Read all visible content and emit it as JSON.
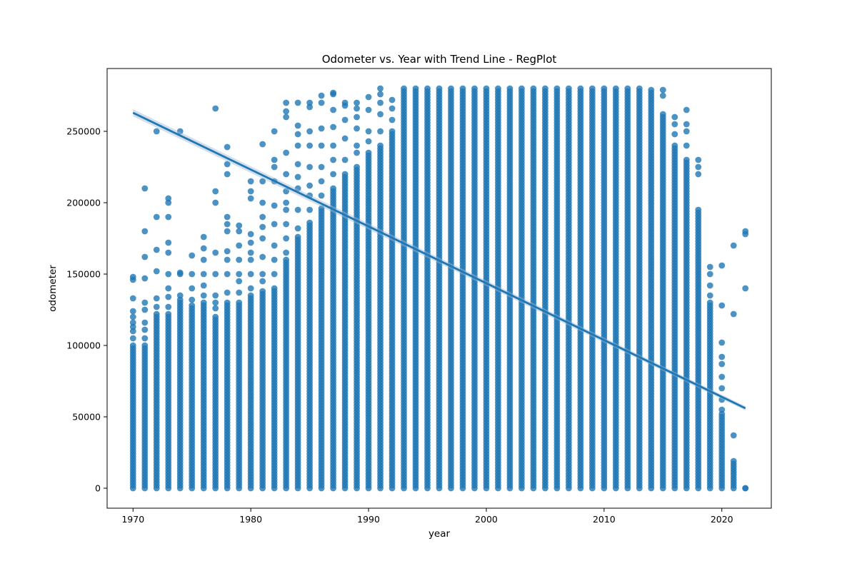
{
  "chart_data": {
    "type": "scatter",
    "title": "Odometer vs. Year with Trend Line - RegPlot",
    "xlabel": "year",
    "ylabel": "odometer",
    "xlim": [
      1967.8,
      2024.2
    ],
    "ylim": [
      -14000,
      294000
    ],
    "xticks": [
      1970,
      1980,
      1990,
      2000,
      2010,
      2020
    ],
    "yticks": [
      0,
      50000,
      100000,
      150000,
      200000,
      250000
    ],
    "grid": false,
    "point_color": "#1f77b4",
    "trend_line": {
      "x": [
        1970,
        2022
      ],
      "y": [
        263000,
        56000
      ],
      "color": "#1f77b4"
    },
    "columns": [
      {
        "year": 1970,
        "min": 0,
        "max": 100000,
        "outliers": [
          105000,
          110000,
          113000,
          116000,
          120000,
          124000,
          133000,
          146000,
          148000
        ]
      },
      {
        "year": 1971,
        "min": 0,
        "max": 100000,
        "outliers": [
          105000,
          111000,
          116000,
          125000,
          130000,
          147000,
          162000,
          180000,
          210000
        ]
      },
      {
        "year": 1972,
        "min": 0,
        "max": 122000,
        "outliers": [
          127000,
          133000,
          152000,
          167000,
          190000,
          250000
        ]
      },
      {
        "year": 1973,
        "min": 0,
        "max": 122000,
        "outliers": [
          127000,
          134000,
          140000,
          150000,
          165000,
          172000,
          190000,
          200000,
          203000
        ]
      },
      {
        "year": 1974,
        "min": 0,
        "max": 132000,
        "outliers": [
          135000,
          150000,
          151000,
          250000
        ]
      },
      {
        "year": 1975,
        "min": 0,
        "max": 128000,
        "outliers": [
          132000,
          140000,
          150000,
          163000
        ]
      },
      {
        "year": 1976,
        "min": 0,
        "max": 130000,
        "outliers": [
          135000,
          142000,
          150000,
          160000,
          168000,
          176000
        ]
      },
      {
        "year": 1977,
        "min": 0,
        "max": 120000,
        "outliers": [
          126000,
          130000,
          135000,
          150000,
          165000,
          200000,
          208000,
          266000
        ]
      },
      {
        "year": 1978,
        "min": 0,
        "max": 130000,
        "outliers": [
          137000,
          150000,
          160000,
          166000,
          180000,
          185000,
          190000,
          220000,
          227000,
          239000
        ]
      },
      {
        "year": 1979,
        "min": 0,
        "max": 130000,
        "outliers": [
          137000,
          145000,
          150000,
          160000,
          170000,
          180000,
          184000
        ]
      },
      {
        "year": 1980,
        "min": 0,
        "max": 135000,
        "outliers": [
          140000,
          150000,
          160000,
          165000,
          172000,
          178000,
          203000,
          208000,
          215000
        ]
      },
      {
        "year": 1981,
        "min": 0,
        "max": 138000,
        "outliers": [
          145000,
          150000,
          162000,
          175000,
          183000,
          190000,
          200000,
          215000,
          241000
        ]
      },
      {
        "year": 1982,
        "min": 0,
        "max": 140000,
        "outliers": [
          150000,
          160000,
          170000,
          185000,
          198000,
          215000,
          225000,
          230000,
          250000
        ]
      },
      {
        "year": 1983,
        "min": 0,
        "max": 160000,
        "outliers": [
          165000,
          175000,
          185000,
          195000,
          200000,
          208000,
          220000,
          235000,
          260000,
          264000,
          270000
        ]
      },
      {
        "year": 1984,
        "min": 0,
        "max": 176000,
        "outliers": [
          182000,
          195000,
          210000,
          218000,
          227000,
          240000,
          248000,
          254000,
          270000
        ]
      },
      {
        "year": 1985,
        "min": 0,
        "max": 186000,
        "outliers": [
          195000,
          205000,
          212000,
          225000,
          240000,
          250000,
          267000,
          270000
        ]
      },
      {
        "year": 1986,
        "min": 0,
        "max": 196000,
        "outliers": [
          205000,
          215000,
          225000,
          240000,
          252000,
          270000,
          275000
        ]
      },
      {
        "year": 1987,
        "min": 0,
        "max": 210000,
        "outliers": [
          220000,
          230000,
          240000,
          253000,
          265000,
          276000,
          277000
        ]
      },
      {
        "year": 1988,
        "min": 0,
        "max": 220000,
        "outliers": [
          230000,
          245000,
          258000,
          268000,
          270000
        ]
      },
      {
        "year": 1989,
        "min": 0,
        "max": 225000,
        "outliers": [
          235000,
          240000,
          252000,
          260000,
          266000,
          270000
        ]
      },
      {
        "year": 1990,
        "min": 0,
        "max": 235000,
        "outliers": [
          243000,
          250000,
          265000,
          274000
        ]
      },
      {
        "year": 1991,
        "min": 0,
        "max": 240000,
        "outliers": [
          250000,
          262000,
          270000,
          276000,
          280000
        ]
      },
      {
        "year": 1992,
        "min": 0,
        "max": 250000,
        "outliers": [
          258000,
          266000,
          272000
        ]
      },
      {
        "year": 1993,
        "min": 0,
        "max": 280000,
        "outliers": []
      },
      {
        "year": 1994,
        "min": 0,
        "max": 280000,
        "outliers": []
      },
      {
        "year": 1995,
        "min": 0,
        "max": 280000,
        "outliers": []
      },
      {
        "year": 1996,
        "min": 0,
        "max": 280000,
        "outliers": []
      },
      {
        "year": 1997,
        "min": 0,
        "max": 280000,
        "outliers": []
      },
      {
        "year": 1998,
        "min": 0,
        "max": 280000,
        "outliers": []
      },
      {
        "year": 1999,
        "min": 0,
        "max": 280000,
        "outliers": []
      },
      {
        "year": 2000,
        "min": 0,
        "max": 280000,
        "outliers": []
      },
      {
        "year": 2001,
        "min": 0,
        "max": 280000,
        "outliers": []
      },
      {
        "year": 2002,
        "min": 0,
        "max": 280000,
        "outliers": []
      },
      {
        "year": 2003,
        "min": 0,
        "max": 280000,
        "outliers": []
      },
      {
        "year": 2004,
        "min": 0,
        "max": 280000,
        "outliers": []
      },
      {
        "year": 2005,
        "min": 0,
        "max": 280000,
        "outliers": []
      },
      {
        "year": 2006,
        "min": 0,
        "max": 280000,
        "outliers": []
      },
      {
        "year": 2007,
        "min": 0,
        "max": 280000,
        "outliers": []
      },
      {
        "year": 2008,
        "min": 0,
        "max": 280000,
        "outliers": []
      },
      {
        "year": 2009,
        "min": 0,
        "max": 280000,
        "outliers": []
      },
      {
        "year": 2010,
        "min": 0,
        "max": 280000,
        "outliers": []
      },
      {
        "year": 2011,
        "min": 0,
        "max": 280000,
        "outliers": []
      },
      {
        "year": 2012,
        "min": 0,
        "max": 280000,
        "outliers": []
      },
      {
        "year": 2013,
        "min": 0,
        "max": 280000,
        "outliers": []
      },
      {
        "year": 2014,
        "min": 0,
        "max": 279000,
        "outliers": []
      },
      {
        "year": 2015,
        "min": 0,
        "max": 262000,
        "outliers": [
          275000,
          279000
        ]
      },
      {
        "year": 2016,
        "min": 0,
        "max": 240000,
        "outliers": [
          248000,
          255000,
          260000
        ]
      },
      {
        "year": 2017,
        "min": 0,
        "max": 230000,
        "outliers": [
          240000,
          250000,
          255000,
          265000
        ]
      },
      {
        "year": 2018,
        "min": 0,
        "max": 195000,
        "outliers": [
          220000,
          225000,
          230000
        ]
      },
      {
        "year": 2019,
        "min": 0,
        "max": 130000,
        "outliers": [
          135000,
          142000,
          150000,
          155000
        ]
      },
      {
        "year": 2020,
        "min": 0,
        "max": 52000,
        "outliers": [
          55000,
          62000,
          70000,
          78000,
          87000,
          92000,
          102000,
          128000,
          156000
        ]
      },
      {
        "year": 2021,
        "min": 0,
        "max": 19000,
        "outliers": [
          37000,
          122000,
          170000
        ]
      },
      {
        "year": 2022,
        "min": 0,
        "max": 0,
        "outliers": [
          140000,
          178000,
          180000
        ]
      }
    ]
  }
}
